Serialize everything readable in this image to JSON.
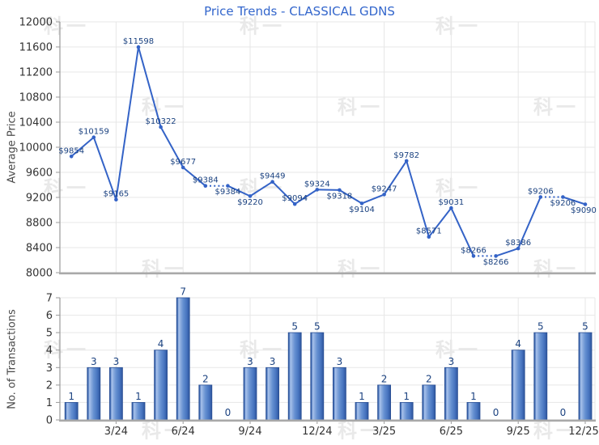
{
  "title": "Price Trends - CLASSICAL GDNS",
  "watermark_text": "科一",
  "colors": {
    "title": "#3366cc",
    "line": "#3463c7",
    "data_label": "#1b4280",
    "grid": "#e7e7e7",
    "axis": "#9a9a9a",
    "axis_strong": "#a9a9a9",
    "tick_label": "#333333",
    "axis_title": "#4a4a4a",
    "watermark": "#e9e9e9",
    "bar_dark": "#2d549c",
    "bar_highlight": "#a9c3ec",
    "bar_mid": "#6590d1",
    "bar_stroke": "#2a4f94"
  },
  "chart_data": [
    {
      "type": "line",
      "title": "Price Trends - CLASSICAL GDNS",
      "ylabel": "Average Price",
      "ylim": [
        8000,
        12000
      ],
      "yticks": [
        8000,
        8400,
        8800,
        9200,
        9600,
        10000,
        10400,
        10800,
        11200,
        11600,
        12000
      ],
      "grid": true,
      "x_tick_labels": [
        "3/24",
        "6/24",
        "9/24",
        "12/24",
        "3/25",
        "6/25",
        "9/25",
        "12/25"
      ],
      "x_tick_positions": [
        3,
        6,
        9,
        12,
        15,
        18,
        21,
        24
      ],
      "values": [
        9854,
        10159,
        9165,
        11598,
        10322,
        9677,
        9384,
        9384,
        9220,
        9449,
        9094,
        9324,
        9318,
        9104,
        9247,
        9782,
        8571,
        9031,
        8266,
        8266,
        8386,
        9206,
        9206,
        9090
      ],
      "point_labels": [
        "$9854",
        "$10159",
        "$9165",
        "$11598",
        "$10322",
        "$9677",
        "$9384",
        "$9384",
        "$9220",
        "$9449",
        "$9094",
        "$9324",
        "$9318",
        "$9104",
        "$9247",
        "$9782",
        "$8571",
        "$9031",
        "$8266",
        "$8266",
        "$8386",
        "$9206",
        "$9206",
        "$9090"
      ],
      "label_side": [
        "above",
        "above",
        "above",
        "above",
        "above",
        "above",
        "above",
        "below",
        "below",
        "above",
        "above",
        "above",
        "below",
        "below",
        "above",
        "above",
        "above",
        "above",
        "above",
        "below",
        "above",
        "above",
        "below",
        "below"
      ],
      "dotted_segments": [
        [
          7,
          8
        ],
        [
          19,
          20
        ],
        [
          22,
          23
        ]
      ]
    },
    {
      "type": "bar",
      "ylabel": "No. of Transactions",
      "ylim": [
        0,
        7
      ],
      "yticks": [
        0,
        1,
        2,
        3,
        4,
        5,
        6,
        7
      ],
      "grid": true,
      "x_tick_labels": [
        "3/24",
        "6/24",
        "9/24",
        "12/24",
        "3/25",
        "6/25",
        "9/25",
        "12/25"
      ],
      "x_tick_positions": [
        3,
        6,
        9,
        12,
        15,
        18,
        21,
        24
      ],
      "values": [
        1,
        3,
        3,
        1,
        4,
        7,
        2,
        0,
        3,
        3,
        5,
        5,
        3,
        1,
        2,
        1,
        2,
        3,
        1,
        0,
        4,
        5,
        0,
        5
      ],
      "bar_labels": [
        "1",
        "3",
        "3",
        "1",
        "4",
        "7",
        "2",
        "0",
        "3",
        "3",
        "5",
        "5",
        "3",
        "1",
        "2",
        "1",
        "2",
        "3",
        "1",
        "0",
        "4",
        "5",
        "0",
        "5"
      ]
    }
  ]
}
